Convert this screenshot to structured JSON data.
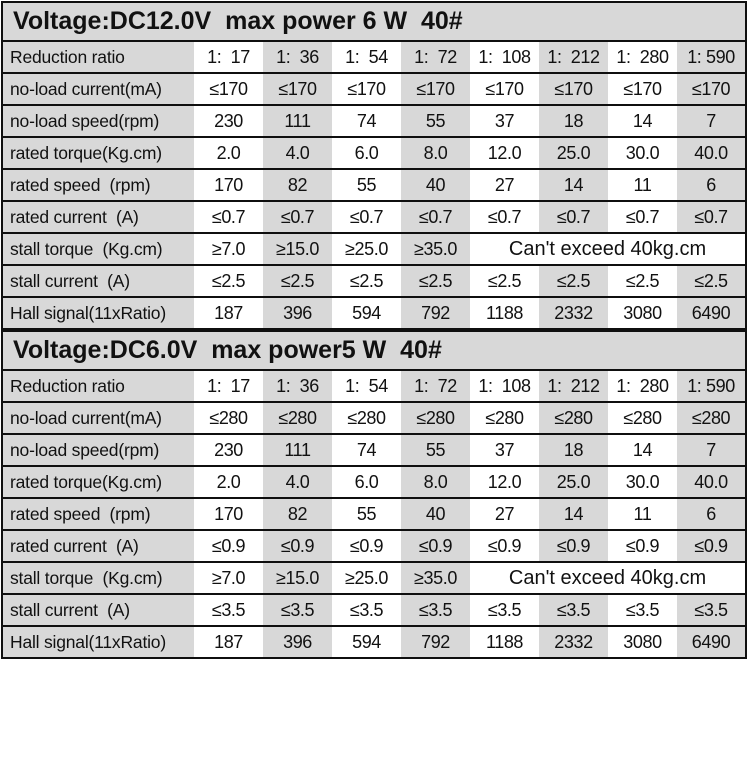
{
  "page": {
    "background": "#ffffff"
  },
  "table": {
    "colors": {
      "cell_gray": "#d8d8d8",
      "cell_white": "#ffffff",
      "header_bg": "#d8d8d8",
      "border": "#0f0f0f",
      "text": "#111111"
    },
    "columns": 9,
    "sections": [
      {
        "title": "Voltage:DC12.0V  max power 6 W  40#",
        "rows": [
          {
            "label": "Reduction ratio",
            "values": [
              "1:  17",
              "1:  36",
              "1:  54",
              "1:  72",
              "1:  108",
              "1:  212",
              "1:  280",
              "1: 590"
            ]
          },
          {
            "label": "no-load current(mA)",
            "values": [
              "≤170",
              "≤170",
              "≤170",
              "≤170",
              "≤170",
              "≤170",
              "≤170",
              "≤170"
            ]
          },
          {
            "label": "no-load speed(rpm)",
            "values": [
              "230",
              "111",
              "74",
              "55",
              "37",
              "18",
              "14",
              "7"
            ]
          },
          {
            "label": "rated torque(Kg.cm)",
            "values": [
              "2.0",
              "4.0",
              "6.0",
              "8.0",
              "12.0",
              "25.0",
              "30.0",
              "40.0"
            ]
          },
          {
            "label": "rated speed  (rpm)",
            "values": [
              "170",
              "82",
              "55",
              "40",
              "27",
              "14",
              "11",
              "6"
            ]
          },
          {
            "label": "rated current  (A)",
            "values": [
              "≤0.7",
              "≤0.7",
              "≤0.7",
              "≤0.7",
              "≤0.7",
              "≤0.7",
              "≤0.7",
              "≤0.7"
            ]
          },
          {
            "label": "stall torque  (Kg.cm)",
            "values": [
              "≥7.0",
              "≥15.0",
              "≥25.0",
              "≥35.0"
            ],
            "note": "Can't exceed 40kg.cm",
            "note_span": 4
          },
          {
            "label": "stall current  (A)",
            "values": [
              "≤2.5",
              "≤2.5",
              "≤2.5",
              "≤2.5",
              "≤2.5",
              "≤2.5",
              "≤2.5",
              "≤2.5"
            ]
          },
          {
            "label": "Hall signal(11xRatio)",
            "values": [
              "187",
              "396",
              "594",
              "792",
              "1188",
              "2332",
              "3080",
              "6490"
            ]
          }
        ]
      },
      {
        "title": "Voltage:DC6.0V  max power5 W  40#",
        "rows": [
          {
            "label": "Reduction ratio",
            "values": [
              "1:  17",
              "1:  36",
              "1:  54",
              "1:  72",
              "1:  108",
              "1:  212",
              "1:  280",
              "1: 590"
            ]
          },
          {
            "label": "no-load current(mA)",
            "values": [
              "≤280",
              "≤280",
              "≤280",
              "≤280",
              "≤280",
              "≤280",
              "≤280",
              "≤280"
            ]
          },
          {
            "label": "no-load speed(rpm)",
            "values": [
              "230",
              "111",
              "74",
              "55",
              "37",
              "18",
              "14",
              "7"
            ]
          },
          {
            "label": "rated torque(Kg.cm)",
            "values": [
              "2.0",
              "4.0",
              "6.0",
              "8.0",
              "12.0",
              "25.0",
              "30.0",
              "40.0"
            ]
          },
          {
            "label": "rated speed  (rpm)",
            "values": [
              "170",
              "82",
              "55",
              "40",
              "27",
              "14",
              "11",
              "6"
            ]
          },
          {
            "label": "rated current  (A)",
            "values": [
              "≤0.9",
              "≤0.9",
              "≤0.9",
              "≤0.9",
              "≤0.9",
              "≤0.9",
              "≤0.9",
              "≤0.9"
            ]
          },
          {
            "label": "stall torque  (Kg.cm)",
            "values": [
              "≥7.0",
              "≥15.0",
              "≥25.0",
              "≥35.0"
            ],
            "note": "Can't exceed 40kg.cm",
            "note_span": 4
          },
          {
            "label": "stall current  (A)",
            "values": [
              "≤3.5",
              "≤3.5",
              "≤3.5",
              "≤3.5",
              "≤3.5",
              "≤3.5",
              "≤3.5",
              "≤3.5"
            ]
          },
          {
            "label": "Hall signal(11xRatio)",
            "values": [
              "187",
              "396",
              "594",
              "792",
              "1188",
              "2332",
              "3080",
              "6490"
            ]
          }
        ]
      }
    ]
  }
}
